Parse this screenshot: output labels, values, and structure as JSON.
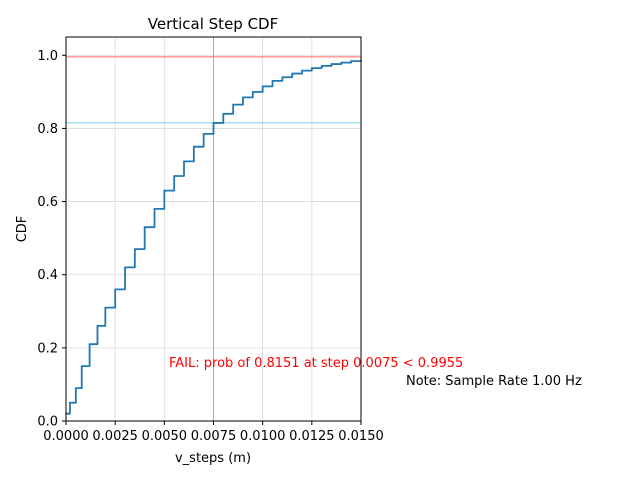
{
  "chart_data": {
    "type": "line",
    "title": "Vertical Step CDF",
    "xlabel": "v_steps (m)",
    "ylabel": "CDF",
    "xlim": [
      0,
      0.015
    ],
    "ylim": [
      0,
      1.05
    ],
    "grid": true,
    "x_ticks": [
      0,
      0.0025,
      0.005,
      0.0075,
      0.01,
      0.0125,
      0.015
    ],
    "x_tick_labels": [
      "0.0000",
      "0.0025",
      "0.0050",
      "0.0075",
      "0.0100",
      "0.0125",
      "0.0150"
    ],
    "y_ticks": [
      0,
      0.2,
      0.4,
      0.6,
      0.8,
      1.0
    ],
    "y_tick_labels": [
      "0.0",
      "0.2",
      "0.4",
      "0.6",
      "0.8",
      "1.0"
    ],
    "series": [
      {
        "name": "CDF",
        "color": "#1f77b4",
        "x": [
          0,
          0.0002,
          0.0005,
          0.0008,
          0.0012,
          0.0016,
          0.002,
          0.0025,
          0.003,
          0.0035,
          0.004,
          0.0045,
          0.005,
          0.0055,
          0.006,
          0.0065,
          0.007,
          0.0075,
          0.008,
          0.0085,
          0.009,
          0.0095,
          0.01,
          0.0105,
          0.011,
          0.0115,
          0.012,
          0.0125,
          0.013,
          0.0135,
          0.014,
          0.0145,
          0.015
        ],
        "y": [
          0.02,
          0.05,
          0.09,
          0.15,
          0.21,
          0.26,
          0.31,
          0.36,
          0.42,
          0.47,
          0.53,
          0.58,
          0.63,
          0.67,
          0.71,
          0.75,
          0.785,
          0.815,
          0.84,
          0.865,
          0.885,
          0.9,
          0.915,
          0.93,
          0.94,
          0.95,
          0.958,
          0.965,
          0.971,
          0.976,
          0.98,
          0.984,
          0.987
        ]
      }
    ],
    "reference_lines": {
      "threshold_y": 0.9955,
      "threshold_color": "#ff6666",
      "prob_y": 0.8151,
      "step_x": 0.0075,
      "marker_color": "#4bc0d9"
    },
    "annotations": {
      "fail_text": "FAIL: prob of 0.8151 at step 0.0075 < 0.9955",
      "fail_color": "#ff0000",
      "note_text": "Note: Sample Rate 1.00 Hz"
    }
  }
}
